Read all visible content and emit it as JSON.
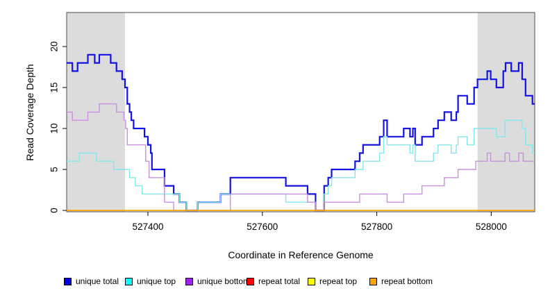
{
  "axes": {
    "x": {
      "label": "Coordinate in Reference Genome",
      "range": [
        527258,
        528076
      ],
      "ticks": [
        527400,
        527600,
        527800,
        528000
      ],
      "tick_labels": [
        "527400",
        "527600",
        "527800",
        "528000"
      ]
    },
    "y": {
      "label": "Read Coverage Depth",
      "range": [
        0,
        24.2
      ],
      "ticks": [
        0,
        5,
        10,
        15,
        20
      ],
      "tick_labels": [
        "0",
        "5",
        "10",
        "15",
        "20"
      ]
    }
  },
  "masked_regions": {
    "color": "#DCDCDC",
    "spans": [
      [
        527258,
        527360
      ],
      [
        527976,
        528076
      ]
    ]
  },
  "legend": [
    {
      "label": "unique total",
      "color": "#0000EE"
    },
    {
      "label": "unique top",
      "color": "#00FFFF"
    },
    {
      "label": "unique bottom",
      "color": "#A020F0"
    },
    {
      "label": "repeat total",
      "color": "#FF0000"
    },
    {
      "label": "repeat top",
      "color": "#FFFF00"
    },
    {
      "label": "repeat bottom",
      "color": "#FFA500"
    }
  ],
  "chart_data": {
    "type": "line",
    "subtype": "step-after",
    "title": "",
    "xlabel": "Coordinate in Reference Genome",
    "ylabel": "Read Coverage Depth",
    "xlim": [
      527258,
      528076
    ],
    "ylim": [
      0,
      24.2
    ],
    "grid": false,
    "legend_position": "bottom",
    "series": [
      {
        "name": "unique total",
        "line_color": "#1212E6",
        "line_width": 2.2,
        "points": [
          [
            527258,
            18
          ],
          [
            527268,
            17
          ],
          [
            527277,
            18
          ],
          [
            527295,
            19
          ],
          [
            527307,
            18
          ],
          [
            527315,
            19
          ],
          [
            527335,
            18
          ],
          [
            527345,
            17
          ],
          [
            527355,
            16
          ],
          [
            527360,
            15
          ],
          [
            527364,
            13
          ],
          [
            527368,
            12
          ],
          [
            527371,
            11
          ],
          [
            527375,
            10
          ],
          [
            527394,
            9
          ],
          [
            527400,
            8
          ],
          [
            527405,
            7
          ],
          [
            527407,
            5
          ],
          [
            527429,
            3
          ],
          [
            527445,
            2
          ],
          [
            527455,
            1
          ],
          [
            527467,
            0
          ],
          [
            527487,
            1
          ],
          [
            527527,
            2
          ],
          [
            527544,
            4
          ],
          [
            527641,
            3
          ],
          [
            527679,
            2
          ],
          [
            527693,
            0
          ],
          [
            527708,
            3
          ],
          [
            527715,
            4
          ],
          [
            527721,
            5
          ],
          [
            527762,
            6
          ],
          [
            527770,
            7
          ],
          [
            527776,
            8
          ],
          [
            527805,
            9
          ],
          [
            527812,
            11
          ],
          [
            527818,
            9
          ],
          [
            527847,
            10
          ],
          [
            527858,
            9
          ],
          [
            527863,
            10
          ],
          [
            527867,
            8
          ],
          [
            527879,
            9
          ],
          [
            527899,
            10
          ],
          [
            527907,
            11
          ],
          [
            527918,
            12
          ],
          [
            527930,
            11
          ],
          [
            527939,
            12
          ],
          [
            527942,
            14
          ],
          [
            527958,
            13
          ],
          [
            527970,
            15
          ],
          [
            527976,
            16
          ],
          [
            527993,
            17
          ],
          [
            527999,
            16
          ],
          [
            528009,
            15
          ],
          [
            528021,
            17
          ],
          [
            528025,
            18
          ],
          [
            528035,
            17
          ],
          [
            528048,
            18
          ],
          [
            528054,
            16
          ],
          [
            528060,
            14
          ],
          [
            528072,
            13
          ]
        ]
      },
      {
        "name": "unique top",
        "line_color": "#82E7EC",
        "line_width": 1.4,
        "points": [
          [
            527258,
            6
          ],
          [
            527280,
            7
          ],
          [
            527310,
            6
          ],
          [
            527340,
            5
          ],
          [
            527368,
            4
          ],
          [
            527378,
            3
          ],
          [
            527390,
            2
          ],
          [
            527455,
            1
          ],
          [
            527467,
            0
          ],
          [
            527487,
            1
          ],
          [
            527527,
            2
          ],
          [
            527641,
            1
          ],
          [
            527693,
            0
          ],
          [
            527708,
            2
          ],
          [
            527715,
            3
          ],
          [
            527721,
            4
          ],
          [
            527762,
            5
          ],
          [
            527776,
            6
          ],
          [
            527805,
            7
          ],
          [
            527812,
            9
          ],
          [
            527818,
            8
          ],
          [
            527858,
            7
          ],
          [
            527863,
            8
          ],
          [
            527867,
            6
          ],
          [
            527899,
            7
          ],
          [
            527907,
            8
          ],
          [
            527930,
            7
          ],
          [
            527939,
            8
          ],
          [
            527942,
            9
          ],
          [
            527958,
            8
          ],
          [
            527970,
            10
          ],
          [
            528009,
            9
          ],
          [
            528024,
            11
          ],
          [
            528054,
            10
          ],
          [
            528060,
            8
          ],
          [
            528072,
            7
          ]
        ]
      },
      {
        "name": "unique bottom",
        "line_color": "#C98FE0",
        "line_width": 1.4,
        "points": [
          [
            527258,
            12
          ],
          [
            527268,
            11
          ],
          [
            527295,
            12
          ],
          [
            527315,
            13
          ],
          [
            527345,
            12
          ],
          [
            527358,
            11
          ],
          [
            527361,
            10
          ],
          [
            527364,
            8
          ],
          [
            527396,
            6
          ],
          [
            527402,
            4
          ],
          [
            527429,
            1
          ],
          [
            527445,
            0
          ],
          [
            527544,
            2
          ],
          [
            527679,
            1
          ],
          [
            527693,
            0
          ],
          [
            527708,
            1
          ],
          [
            527770,
            2
          ],
          [
            527818,
            1
          ],
          [
            527847,
            2
          ],
          [
            527879,
            3
          ],
          [
            527918,
            4
          ],
          [
            527942,
            5
          ],
          [
            527973,
            6
          ],
          [
            527993,
            7
          ],
          [
            527999,
            6
          ],
          [
            528024,
            7
          ],
          [
            528032,
            6
          ],
          [
            528048,
            7
          ],
          [
            528056,
            6
          ]
        ]
      },
      {
        "name": "repeat total",
        "line_color": "#FF0000",
        "line_width": 1.2,
        "points": [
          [
            527258,
            0
          ]
        ]
      },
      {
        "name": "repeat top",
        "line_color": "#FFFF00",
        "line_width": 1.2,
        "points": [
          [
            527258,
            0
          ]
        ]
      },
      {
        "name": "repeat bottom",
        "line_color": "#FFA500",
        "line_width": 1.6,
        "points": [
          [
            527258,
            0
          ]
        ]
      }
    ]
  },
  "layout_note": "step plot of read coverage depth; gray bands mark repeat-masked reference intervals"
}
